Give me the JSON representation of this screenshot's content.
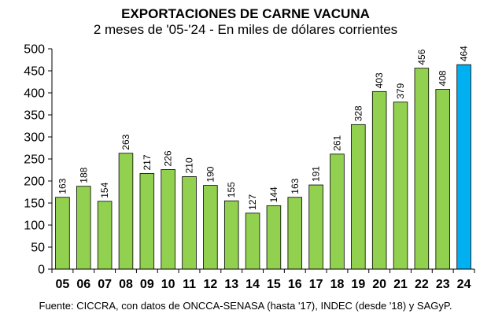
{
  "chart_data": {
    "type": "bar",
    "title": "EXPORTACIONES DE CARNE VACUNA",
    "subtitle": "2 meses de '05-'24 - En miles de dólares corrientes",
    "categories": [
      "05",
      "06",
      "07",
      "08",
      "09",
      "10",
      "11",
      "12",
      "13",
      "14",
      "15",
      "16",
      "17",
      "18",
      "19",
      "20",
      "21",
      "22",
      "23",
      "24"
    ],
    "values": [
      163,
      188,
      154,
      263,
      217,
      226,
      210,
      190,
      155,
      127,
      144,
      163,
      191,
      261,
      328,
      403,
      379,
      456,
      408,
      464
    ],
    "data_labels": [
      "163",
      "188",
      "154",
      "263",
      "217",
      "226",
      "210",
      "190",
      "155",
      "127",
      "144",
      "163",
      "191",
      "261",
      "328",
      "403",
      "379",
      "456",
      "408",
      "464"
    ],
    "ylim": [
      0,
      500
    ],
    "yticks": [
      0,
      50,
      100,
      150,
      200,
      250,
      300,
      350,
      400,
      450,
      500
    ],
    "ytick_labels": [
      "0",
      "50",
      "100",
      "150",
      "200",
      "250",
      "300",
      "350",
      "400",
      "450",
      "500"
    ],
    "grid": false,
    "legend": "none",
    "highlight_index": 19,
    "colors": {
      "bar": "#92D050",
      "highlight": "#00B0F0",
      "bar_edge": "#000000",
      "axis": "#000000"
    },
    "source": "Fuente: CICCRA, con datos de ONCCA-SENASA (hasta '17), INDEC (desde '18) y SAGyP."
  }
}
